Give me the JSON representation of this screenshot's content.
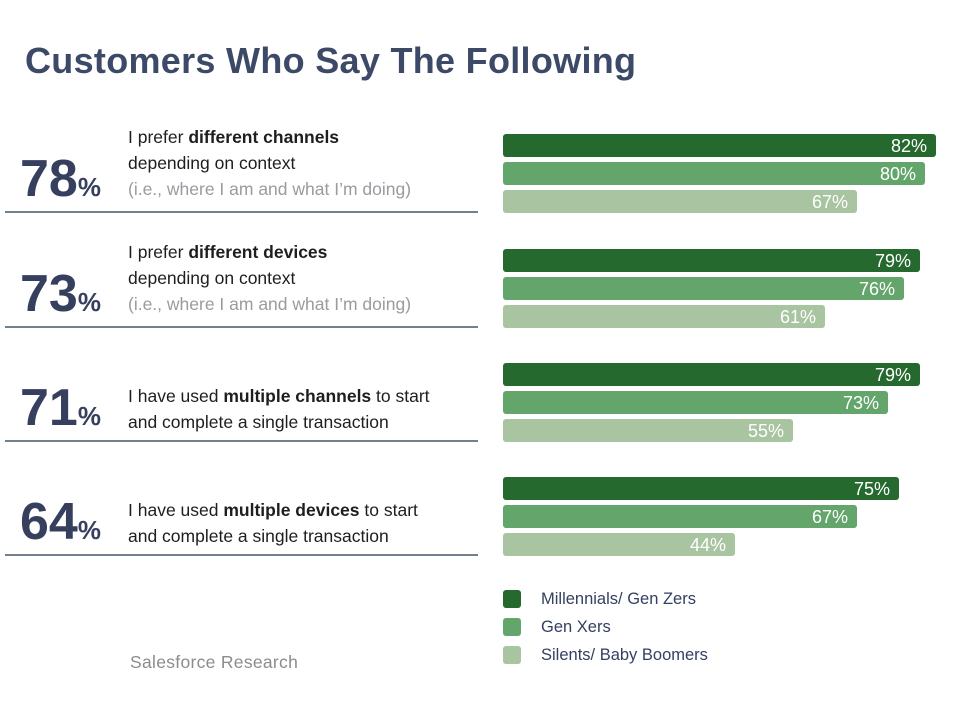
{
  "title": "Customers Who Say The Following",
  "source": "Salesforce Research",
  "colors": {
    "dark_green": "#26692f",
    "medium_green": "#64a56c",
    "light_green": "#a9c4a0",
    "navy_text": "#363f5e",
    "statement_text": "#1e1e20",
    "note_gray": "#9b9aa0",
    "bar_label_white": "#ffffff"
  },
  "legend": [
    {
      "label": "Millennials/ Gen Zers",
      "color": "#26692f"
    },
    {
      "label": "Gen Xers",
      "color": "#64a56c"
    },
    {
      "label": "Silents/ Baby Boomers",
      "color": "#a9c4a0"
    }
  ],
  "chart_data": {
    "type": "bar",
    "orientation": "horizontal",
    "title": "Customers Who Say The Following",
    "value_unit": "%",
    "value_range": [
      0,
      100
    ],
    "series_names": [
      "Millennials/ Gen Zers",
      "Gen Xers",
      "Silents/ Baby Boomers"
    ],
    "rows": [
      {
        "overall": "78",
        "overall_unit": "%",
        "lines": [
          [
            {
              "t": "I prefer ",
              "b": false
            },
            {
              "t": "different channels",
              "b": true
            }
          ],
          [
            {
              "t": "depending on context",
              "b": false
            }
          ]
        ],
        "note": "(i.e., where I am and what I’m doing)",
        "values": [
          82,
          80,
          67
        ],
        "value_labels": [
          "82%",
          "80%",
          "67%"
        ]
      },
      {
        "overall": "73",
        "overall_unit": "%",
        "lines": [
          [
            {
              "t": "I prefer ",
              "b": false
            },
            {
              "t": "different devices",
              "b": true
            }
          ],
          [
            {
              "t": "depending on context",
              "b": false
            }
          ]
        ],
        "note": "(i.e., where I am and what I’m doing)",
        "values": [
          79,
          76,
          61
        ],
        "value_labels": [
          "79%",
          "76%",
          "61%"
        ]
      },
      {
        "overall": "71",
        "overall_unit": "%",
        "lines": [
          [
            {
              "t": "I have used ",
              "b": false
            },
            {
              "t": "multiple channels",
              "b": true
            },
            {
              "t": " to start",
              "b": false
            }
          ],
          [
            {
              "t": "and complete a single transaction",
              "b": false
            }
          ]
        ],
        "note": "",
        "values": [
          79,
          73,
          55
        ],
        "value_labels": [
          "79%",
          "73%",
          "55%"
        ]
      },
      {
        "overall": "64",
        "overall_unit": "%",
        "lines": [
          [
            {
              "t": "I have used ",
              "b": false
            },
            {
              "t": "multiple devices",
              "b": true
            },
            {
              "t": " to start",
              "b": false
            }
          ],
          [
            {
              "t": "and complete a single transaction",
              "b": false
            }
          ]
        ],
        "note": "",
        "values": [
          75,
          67,
          44
        ],
        "value_labels": [
          "75%",
          "67%",
          "44%"
        ]
      }
    ]
  }
}
